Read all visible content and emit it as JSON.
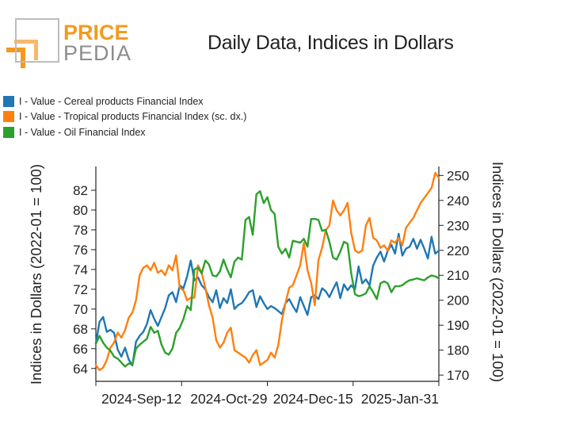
{
  "logo": {
    "brand_top": "PRICE",
    "brand_bottom": "PEDIA",
    "colors": {
      "orange": "#f39a1e",
      "gray": "#8c8c8c"
    }
  },
  "chart_data": {
    "type": "line",
    "title": "Daily Data, Indices in Dollars",
    "ylabel": "Indices in Dollars (2022-01 = 100)",
    "ylabel_right": "Indices in Dollars (2022-01 = 100)",
    "x_ticks": [
      "2024-Sep-12",
      "2024-Oct-29",
      "2024-Dec-15",
      "2025-Jan-31"
    ],
    "x_tick_positions": [
      47,
      94,
      141,
      188
    ],
    "xlim": [
      0,
      188
    ],
    "ylim_left": [
      62.7,
      84.4
    ],
    "ylim_right": [
      167.5,
      253.6
    ],
    "y_ticks_left": [
      64,
      66,
      68,
      70,
      72,
      74,
      76,
      78,
      80,
      82
    ],
    "y_ticks_right": [
      170,
      180,
      190,
      200,
      210,
      220,
      230,
      240,
      250
    ],
    "grid": false,
    "legend_position": "top-left",
    "series": [
      {
        "name": "I - Value - Cereal products Financial Index",
        "axis": "left",
        "color": "#1f77b4",
        "x": [
          0,
          2,
          4,
          6,
          8,
          10,
          12,
          14,
          16,
          18,
          20,
          22,
          24,
          26,
          28,
          30,
          32,
          34,
          36,
          38,
          40,
          42,
          44,
          46,
          48,
          50,
          52,
          54,
          56,
          58,
          60,
          62,
          64,
          66,
          68,
          70,
          72,
          74,
          76,
          78,
          80,
          82,
          84,
          86,
          88,
          90,
          92,
          94,
          96,
          98,
          100,
          102,
          104,
          106,
          108,
          110,
          112,
          114,
          116,
          118,
          120,
          122,
          124,
          126,
          128,
          130,
          132,
          134,
          136,
          138,
          140,
          142,
          144,
          146,
          148,
          150,
          152,
          154,
          156,
          158,
          160,
          162,
          164,
          166,
          168,
          170,
          172,
          174,
          176,
          178,
          180,
          182,
          184,
          186,
          188
        ],
        "values": [
          66.5,
          68.7,
          69.2,
          67.7,
          67.9,
          67.6,
          65.9,
          65.2,
          66.1,
          64.9,
          64.3,
          66.7,
          67.3,
          67.7,
          68.5,
          69.9,
          69.0,
          68.3,
          69.2,
          70.1,
          71.4,
          71.7,
          70.7,
          72.4,
          72.1,
          73.3,
          74.9,
          72.9,
          73.2,
          72.4,
          72.0,
          71.2,
          70.7,
          71.9,
          70.1,
          71.1,
          70.6,
          72.0,
          70.0,
          70.4,
          70.6,
          71.1,
          71.7,
          71.9,
          70.2,
          71.3,
          70.6,
          70.0,
          70.3,
          70.1,
          69.8,
          69.5,
          70.6,
          71.0,
          70.3,
          69.7,
          71.2,
          70.3,
          69.4,
          71.2,
          71.4,
          71.0,
          72.1,
          71.8,
          71.2,
          72.0,
          72.7,
          71.1,
          72.5,
          71.9,
          72.4,
          72.0,
          74.3,
          72.6,
          73.0,
          72.4,
          74.4,
          75.2,
          75.8,
          74.8,
          75.9,
          76.5,
          75.6,
          77.6,
          75.4,
          76.1,
          76.3,
          77.1,
          76.1,
          77.0,
          76.1,
          75.1,
          77.3,
          75.6,
          75.9
        ]
      },
      {
        "name": "I - Value - Tropical products Financial Index (sc. dx.)",
        "axis": "right",
        "color": "#ff7f0e",
        "x": [
          0,
          2,
          4,
          6,
          8,
          10,
          12,
          14,
          16,
          18,
          20,
          22,
          24,
          26,
          28,
          30,
          32,
          34,
          36,
          38,
          40,
          42,
          44,
          46,
          48,
          50,
          52,
          54,
          56,
          58,
          60,
          62,
          64,
          66,
          68,
          70,
          72,
          74,
          76,
          78,
          80,
          82,
          84,
          86,
          88,
          90,
          92,
          94,
          96,
          98,
          100,
          102,
          104,
          106,
          108,
          110,
          112,
          114,
          116,
          118,
          120,
          122,
          124,
          126,
          128,
          130,
          132,
          134,
          136,
          138,
          140,
          142,
          144,
          146,
          148,
          150,
          152,
          154,
          156,
          158,
          160,
          162,
          164,
          166,
          168,
          170,
          172,
          174,
          176,
          178,
          180,
          182,
          184,
          186,
          188
        ],
        "values": [
          174,
          172,
          173,
          176,
          181,
          183,
          187,
          185,
          188,
          193,
          195,
          200,
          210,
          213,
          214,
          212,
          215,
          211,
          212,
          210,
          214,
          212,
          218,
          205,
          204,
          200,
          201,
          201,
          214,
          211,
          205,
          198,
          193,
          184,
          181,
          183,
          187,
          189,
          180,
          179,
          178,
          177,
          175,
          178,
          180,
          174,
          175,
          176,
          179,
          177,
          182,
          192,
          199,
          205,
          206,
          210,
          214,
          223,
          212,
          207,
          198,
          216,
          221,
          228,
          230,
          240,
          236,
          234,
          236,
          239,
          227,
          220,
          219,
          220,
          230,
          233,
          225,
          224,
          221,
          222,
          220,
          224,
          223,
          225,
          222,
          229,
          231,
          233,
          236,
          239,
          241,
          243,
          245,
          251,
          249
        ]
      },
      {
        "name": "I - Value - Oil Financial Index",
        "axis": "left",
        "color": "#2ca02c",
        "x": [
          0,
          2,
          4,
          6,
          8,
          10,
          12,
          14,
          16,
          18,
          20,
          22,
          24,
          26,
          28,
          30,
          32,
          34,
          36,
          38,
          40,
          42,
          44,
          46,
          48,
          50,
          52,
          54,
          56,
          58,
          60,
          62,
          64,
          66,
          68,
          70,
          72,
          74,
          76,
          78,
          80,
          82,
          84,
          86,
          88,
          90,
          92,
          94,
          96,
          98,
          100,
          102,
          104,
          106,
          108,
          110,
          112,
          114,
          116,
          118,
          120,
          122,
          124,
          126,
          128,
          130,
          132,
          134,
          136,
          138,
          140,
          142,
          144,
          146,
          148,
          150,
          152,
          154,
          156,
          158,
          160,
          162,
          164,
          166,
          168,
          170,
          172,
          174,
          176,
          178,
          180,
          182,
          184,
          186,
          188
        ],
        "values": [
          66.5,
          67.3,
          66.6,
          66.1,
          65.8,
          65.2,
          65.0,
          64.6,
          64.2,
          64.5,
          64.4,
          66.0,
          66.4,
          66.7,
          67.0,
          68.2,
          67.6,
          67.8,
          66.4,
          65.6,
          65.4,
          66.0,
          67.6,
          68.1,
          69.0,
          70.3,
          69.9,
          74.0,
          74.2,
          73.6,
          74.9,
          74.5,
          73.4,
          73.3,
          73.8,
          75.0,
          74.0,
          73.2,
          74.8,
          75.2,
          75.0,
          79.0,
          79.3,
          77.5,
          81.6,
          81.9,
          80.7,
          81.3,
          80.0,
          79.6,
          76.3,
          75.6,
          76.1,
          75.2,
          76.9,
          76.8,
          76.7,
          77.1,
          76.3,
          79.1,
          79.1,
          79.0,
          77.9,
          78.0,
          76.8,
          75.2,
          75.0,
          75.8,
          76.8,
          76.6,
          73.6,
          71.5,
          71.3,
          71.4,
          71.6,
          72.3,
          71.7,
          71.0,
          72.6,
          72.8,
          72.6,
          71.7,
          72.3,
          72.3,
          72.4,
          72.7,
          72.9,
          73.0,
          73.1,
          73.0,
          72.9,
          73.2,
          73.4,
          73.3,
          73.1
        ]
      }
    ]
  }
}
